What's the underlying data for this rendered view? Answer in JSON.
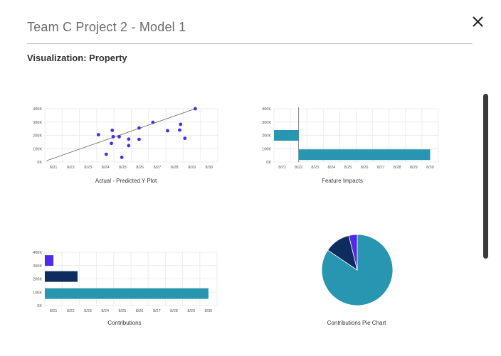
{
  "dialog": {
    "title": "Team C Project 2 - Model 1",
    "section_title": "Visualization: Property",
    "close_icon": "close-icon"
  },
  "chart_data": [
    {
      "type": "scatter",
      "title": "Actual - Predicted Y Plot",
      "categories": [
        "8/21",
        "8/22",
        "8/23",
        "8/24",
        "8/25",
        "8/26",
        "8/27",
        "8/28",
        "8/29",
        "8/30"
      ],
      "y_ticks": [
        "0K",
        "100K",
        "200K",
        "300K",
        "400K"
      ],
      "ylim": [
        0,
        400
      ],
      "points": [
        {
          "x": 8.2,
          "y": 400
        },
        {
          "x": 2.6,
          "y": 205
        },
        {
          "x": 3.4,
          "y": 238
        },
        {
          "x": 3.45,
          "y": 190
        },
        {
          "x": 3.8,
          "y": 190
        },
        {
          "x": 3.35,
          "y": 140
        },
        {
          "x": 3.05,
          "y": 58
        },
        {
          "x": 3.95,
          "y": 35
        },
        {
          "x": 4.35,
          "y": 172
        },
        {
          "x": 4.35,
          "y": 123
        },
        {
          "x": 4.95,
          "y": 255
        },
        {
          "x": 4.95,
          "y": 170
        },
        {
          "x": 5.75,
          "y": 298
        },
        {
          "x": 6.6,
          "y": 235
        },
        {
          "x": 7.3,
          "y": 240
        },
        {
          "x": 7.35,
          "y": 283
        },
        {
          "x": 7.6,
          "y": 178
        }
      ],
      "trendline": [
        {
          "x": -0.4,
          "y": 10
        },
        {
          "x": 8.2,
          "y": 400
        }
      ],
      "color": "#4f2ae8"
    },
    {
      "type": "bar",
      "title": "Feature Impacts",
      "categories": [
        "8/21",
        "8/22",
        "8/23",
        "8/24",
        "8/25",
        "8/26",
        "8/27",
        "8/28",
        "8/29",
        "8/30"
      ],
      "y_ticks": [
        "0K",
        "100K",
        "200K",
        "300K",
        "400K"
      ],
      "ylim": [
        0,
        400
      ],
      "bars": [
        {
          "band": 200,
          "from": -0.5,
          "to": 1.0
        },
        {
          "band": 55,
          "from": 1.0,
          "to": 9.0
        }
      ],
      "color": "#2896b0"
    },
    {
      "type": "bar",
      "title": "Contributions",
      "categories": [
        "8/21",
        "8/22",
        "8/23",
        "8/24",
        "8/25",
        "8/26",
        "8/27",
        "8/28",
        "8/29",
        "8/30"
      ],
      "y_ticks": [
        "0K",
        "100K",
        "200K",
        "300K",
        "400K"
      ],
      "ylim": [
        0,
        400
      ],
      "bars": [
        {
          "band": 338,
          "from": -0.5,
          "to": 0.0,
          "color": "#4f2ae8"
        },
        {
          "band": 218,
          "from": -0.5,
          "to": 1.4,
          "color": "#0e2d5e"
        },
        {
          "band": 90,
          "from": -0.5,
          "to": 9.0,
          "color": "#2896b0"
        }
      ]
    },
    {
      "type": "pie",
      "title": "Contributions Pie Chart",
      "slices": [
        {
          "value": 0.8444,
          "color": "#2896b0"
        },
        {
          "value": 0.1175,
          "color": "#0e2d5e"
        },
        {
          "value": 0.0381,
          "color": "#4f2ae8"
        }
      ]
    }
  ]
}
